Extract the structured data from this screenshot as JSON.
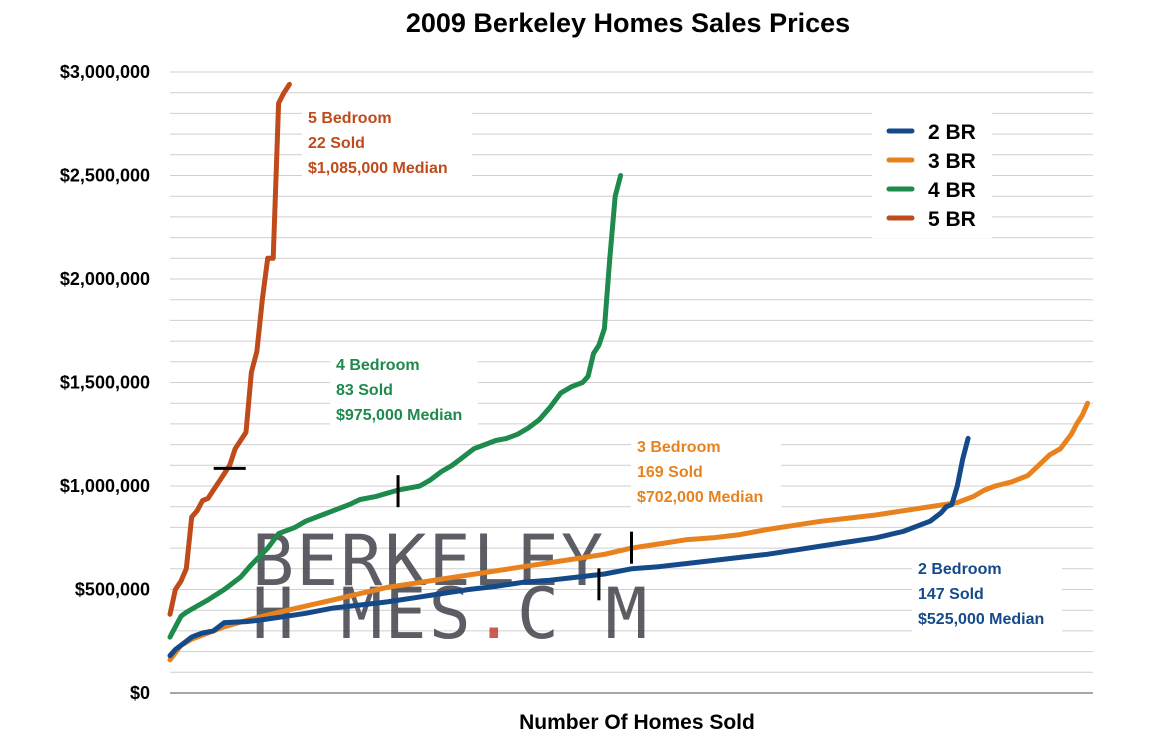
{
  "chart_data": {
    "type": "line",
    "title": "2009 Berkeley Homes Sales Prices",
    "xlabel": "Number Of Homes Sold",
    "ylabel": "",
    "ylim": [
      0,
      3000000
    ],
    "yticks": [
      {
        "value": 0,
        "label": "$0"
      },
      {
        "value": 500000,
        "label": "$500,000"
      },
      {
        "value": 1000000,
        "label": "$1,000,000"
      },
      {
        "value": 1500000,
        "label": "$1,500,000"
      },
      {
        "value": 2000000,
        "label": "$2,000,000"
      },
      {
        "value": 2500000,
        "label": "$2,500,000"
      },
      {
        "value": 3000000,
        "label": "$3,000,000"
      }
    ],
    "xlim": [
      0,
      170
    ],
    "grid": true,
    "legend_position": "top-right",
    "series": [
      {
        "name": "2 BR",
        "color": "#154a8a",
        "count": 147,
        "median_x": 79,
        "median_y": 525000,
        "x": [
          0,
          1,
          2,
          3,
          4,
          5,
          6,
          8,
          10,
          14,
          16,
          20,
          25,
          30,
          35,
          40,
          45,
          50,
          55,
          60,
          65,
          70,
          75,
          80,
          85,
          90,
          95,
          100,
          105,
          110,
          115,
          120,
          125,
          130,
          135,
          138,
          140,
          142,
          143,
          144,
          145,
          146,
          147
        ],
        "values": [
          180000,
          210000,
          230000,
          250000,
          270000,
          280000,
          290000,
          300000,
          340000,
          345000,
          350000,
          365000,
          385000,
          410000,
          425000,
          440000,
          460000,
          480000,
          500000,
          515000,
          535000,
          545000,
          560000,
          575000,
          600000,
          610000,
          625000,
          640000,
          655000,
          670000,
          690000,
          710000,
          730000,
          750000,
          780000,
          810000,
          830000,
          870000,
          900000,
          910000,
          1000000,
          1130000,
          1230000
        ]
      },
      {
        "name": "3 BR",
        "color": "#e8821e",
        "count": 169,
        "median_x": 85,
        "median_y": 702000,
        "x": [
          0,
          2,
          4,
          6,
          8,
          10,
          14,
          20,
          25,
          30,
          35,
          40,
          45,
          50,
          55,
          60,
          65,
          70,
          75,
          80,
          85,
          90,
          95,
          100,
          105,
          110,
          115,
          120,
          125,
          130,
          135,
          140,
          145,
          148,
          150,
          152,
          155,
          158,
          160,
          162,
          164,
          166,
          167,
          168,
          169
        ],
        "values": [
          160000,
          230000,
          260000,
          280000,
          300000,
          320000,
          350000,
          390000,
          420000,
          450000,
          480000,
          510000,
          530000,
          550000,
          570000,
          590000,
          610000,
          630000,
          650000,
          670000,
          700000,
          720000,
          740000,
          750000,
          765000,
          790000,
          810000,
          830000,
          845000,
          860000,
          880000,
          900000,
          920000,
          950000,
          980000,
          1000000,
          1020000,
          1050000,
          1100000,
          1150000,
          1180000,
          1250000,
          1300000,
          1340000,
          1400000
        ]
      },
      {
        "name": "4 BR",
        "color": "#1e8a4c",
        "count": 83,
        "median_x": 42,
        "median_y": 975000,
        "x": [
          0,
          1,
          2,
          3,
          5,
          7,
          10,
          13,
          15,
          18,
          20,
          23,
          25,
          28,
          30,
          33,
          35,
          38,
          40,
          42,
          44,
          46,
          48,
          50,
          52,
          54,
          56,
          58,
          60,
          62,
          64,
          66,
          68,
          70,
          72,
          74,
          76,
          77,
          78,
          79,
          80,
          81,
          82,
          83
        ],
        "values": [
          270000,
          320000,
          370000,
          390000,
          420000,
          450000,
          500000,
          560000,
          620000,
          700000,
          770000,
          800000,
          830000,
          860000,
          880000,
          910000,
          935000,
          950000,
          965000,
          980000,
          990000,
          1000000,
          1030000,
          1070000,
          1100000,
          1140000,
          1180000,
          1200000,
          1220000,
          1230000,
          1250000,
          1280000,
          1320000,
          1380000,
          1450000,
          1480000,
          1500000,
          1530000,
          1640000,
          1680000,
          1760000,
          2100000,
          2400000,
          2500000
        ]
      },
      {
        "name": "5 BR",
        "color": "#bf4a1a",
        "count": 22,
        "median_x": 11,
        "median_y": 1085000,
        "x": [
          0,
          1,
          2,
          3,
          4,
          5,
          6,
          7,
          8,
          9,
          10,
          11,
          12,
          13,
          14,
          15,
          16,
          17,
          18,
          19,
          20,
          21,
          22
        ],
        "values": [
          380000,
          500000,
          540000,
          600000,
          850000,
          880000,
          930000,
          940000,
          980000,
          1020000,
          1060000,
          1100000,
          1180000,
          1220000,
          1260000,
          1550000,
          1650000,
          1900000,
          2100000,
          2100000,
          2850000,
          2900000,
          2940000
        ]
      }
    ],
    "annotations": [
      {
        "lines": [
          "5 Bedroom",
          "22 Sold",
          "$1,085,000 Median"
        ],
        "color": "#bf4a1a"
      },
      {
        "lines": [
          "4 Bedroom",
          "83 Sold",
          "$975,000 Median"
        ],
        "color": "#1e8a4c"
      },
      {
        "lines": [
          "3 Bedroom",
          "169 Sold",
          "$702,000 Median"
        ],
        "color": "#e8821e"
      },
      {
        "lines": [
          "2 Bedroom",
          "147 Sold",
          "$525,000 Median"
        ],
        "color": "#154a8a"
      }
    ]
  },
  "watermark": {
    "line1": "BERKELEY",
    "line2_a": "H",
    "line2_b": "MES",
    "line2_dot": ".",
    "line2_c": "C",
    "line2_d": "M"
  }
}
